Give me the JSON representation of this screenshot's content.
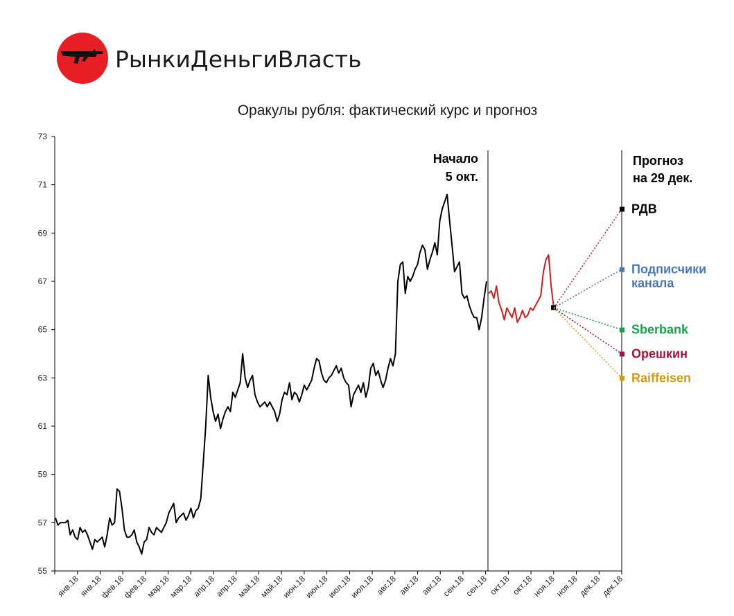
{
  "brand": {
    "name": "РынкиДеньгиВласть",
    "logo_color": "#e81e25"
  },
  "chart_data": {
    "type": "line",
    "title": "Оракулы рубля: фактический курс и прогноз",
    "ylim": [
      55,
      73
    ],
    "y_ticks": [
      55,
      57,
      59,
      61,
      63,
      65,
      67,
      69,
      71,
      73
    ],
    "x_tick_labels": [
      "янв.18",
      "янв.18",
      "фев.18",
      "фев.18",
      "мар.18",
      "мар.18",
      "апр.18",
      "апр.18",
      "май.18",
      "май.18",
      "июн.18",
      "июн.18",
      "июл.18",
      "июл.18",
      "авг.18",
      "авг.18",
      "авг.18",
      "сен.18",
      "сен.18",
      "окт.18",
      "окт.18",
      "ноя.18",
      "ноя.18",
      "дек.18",
      "дек.18"
    ],
    "grid": false,
    "actual_series": {
      "color": "#000000",
      "values": [
        57.2,
        56.9,
        57.0,
        57.0,
        57.0,
        57.1,
        56.5,
        56.7,
        56.4,
        56.3,
        56.8,
        56.6,
        56.7,
        56.5,
        56.2,
        55.9,
        56.3,
        56.2,
        56.3,
        56.4,
        56.0,
        56.5,
        57.2,
        56.9,
        57.0,
        58.4,
        58.3,
        57.6,
        56.7,
        56.4,
        56.4,
        56.5,
        56.7,
        56.2,
        56.0,
        55.7,
        56.2,
        56.3,
        56.8,
        56.6,
        56.5,
        56.8,
        56.7,
        56.6,
        56.8,
        57.0,
        57.4,
        57.6,
        57.8,
        57.0,
        57.2,
        57.3,
        57.4,
        57.1,
        57.3,
        57.6,
        57.2,
        57.5,
        57.6,
        58.0,
        59.5,
        61.0,
        63.1,
        62.2,
        61.6,
        61.2,
        61.5,
        60.9,
        61.3,
        61.6,
        61.8,
        61.6,
        62.4,
        62.2,
        62.5,
        62.8,
        64.0,
        63.0,
        62.6,
        62.9,
        63.1,
        62.3,
        62.0,
        61.8,
        61.9,
        62.0,
        61.8,
        62.0,
        61.8,
        61.6,
        61.2,
        61.5,
        62.1,
        62.4,
        62.3,
        62.8,
        62.1,
        62.4,
        62.3,
        62.0,
        62.3,
        62.7,
        62.5,
        62.7,
        62.9,
        63.4,
        63.8,
        63.7,
        63.2,
        62.9,
        62.8,
        63.0,
        63.1,
        63.3,
        63.5,
        63.2,
        63.4,
        63.0,
        62.8,
        62.7,
        61.8,
        62.3,
        62.5,
        62.7,
        62.4,
        62.8,
        62.2,
        62.6,
        63.4,
        63.6,
        63.1,
        63.3,
        62.9,
        62.6,
        62.9,
        63.4,
        63.8,
        63.5,
        64.0,
        67.0,
        67.7,
        67.8,
        66.5,
        67.2,
        67.0,
        67.2,
        67.5,
        67.7,
        68.2,
        68.5,
        68.3,
        67.5,
        67.9,
        68.2,
        68.6,
        68.1,
        69.5,
        70.0,
        70.3,
        70.6,
        69.5,
        68.5,
        67.4,
        67.6,
        67.8,
        66.5,
        66.3,
        66.4,
        66.0,
        65.7,
        65.5,
        65.5,
        65.0,
        65.5,
        66.3,
        67.0
      ]
    },
    "forecast_period_series": {
      "color": "#d01c1c",
      "values": [
        66.5,
        66.6,
        66.3,
        66.8,
        66.1,
        65.8,
        65.4,
        65.9,
        65.7,
        65.5,
        65.9,
        65.3,
        65.5,
        65.8,
        65.5,
        65.6,
        65.9,
        65.8,
        66.0,
        66.2,
        66.4,
        67.4,
        67.9,
        68.1,
        66.8,
        65.9
      ]
    },
    "vertical_lines": [
      "Начало 5 окт.",
      "Прогноз на 29 дек."
    ],
    "start_annotation": [
      "Начало",
      "5 окт."
    ],
    "forecast_annotation": [
      "Прогноз",
      "на 29 дек."
    ],
    "forecast_origin_value": 65.9,
    "forecasts": [
      {
        "label": "РДВ",
        "value": 70.0,
        "color": "#c8232c",
        "label_color": "#000000"
      },
      {
        "label_lines": [
          "Подписчики",
          "канала"
        ],
        "value": 67.5,
        "color": "#4a78b8",
        "label_color": "#4a78b8"
      },
      {
        "label": "Sberbank",
        "value": 65.0,
        "color": "#1aa04a",
        "label_color": "#1aa04a"
      },
      {
        "label": "Орешкин",
        "value": 64.0,
        "color": "#a0143c",
        "label_color": "#a0143c"
      },
      {
        "label": "Raiffeisen",
        "value": 63.0,
        "color": "#d09a1a",
        "label_color": "#d09a1a"
      }
    ]
  }
}
